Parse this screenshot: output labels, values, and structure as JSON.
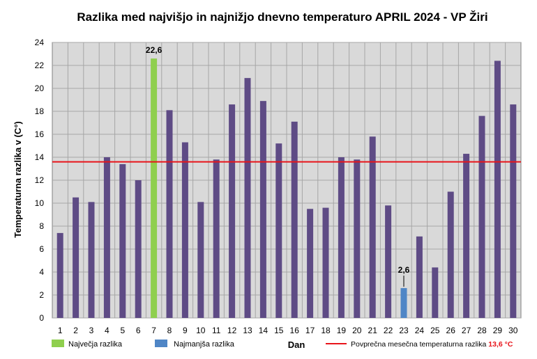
{
  "chart_data": {
    "type": "bar",
    "title": "Razlika med najvišjo in najnižjo dnevno temperaturo APRIL 2024 - VP Žiri",
    "xlabel": "Dan",
    "ylabel": "Temperaturna razlika v (C°)",
    "ylim": [
      0,
      24
    ],
    "yticks": [
      0,
      2,
      4,
      6,
      8,
      10,
      12,
      14,
      16,
      18,
      20,
      22,
      24
    ],
    "grid": true,
    "categories": [
      "1",
      "2",
      "3",
      "4",
      "5",
      "6",
      "7",
      "8",
      "9",
      "10",
      "11",
      "12",
      "13",
      "14",
      "15",
      "16",
      "17",
      "18",
      "19",
      "20",
      "21",
      "22",
      "23",
      "24",
      "25",
      "26",
      "27",
      "28",
      "29",
      "30"
    ],
    "values": [
      7.4,
      10.5,
      10.1,
      14.0,
      13.4,
      12.0,
      22.6,
      18.1,
      15.3,
      10.1,
      13.8,
      18.6,
      20.9,
      18.9,
      15.2,
      17.1,
      9.5,
      9.6,
      14.0,
      13.8,
      15.8,
      9.8,
      2.6,
      7.1,
      4.4,
      11.0,
      14.3,
      17.6,
      22.4,
      18.6
    ],
    "average": 13.6,
    "max_day": 7,
    "min_day": 23,
    "annotations": {
      "max_label": "22,6",
      "min_label": "2,6"
    },
    "colors": {
      "bar": "#5e4b85",
      "max": "#8fcf4e",
      "min": "#4f86c6",
      "average_line": "#e8141a",
      "plot_bg": "#d9d9d9",
      "grid": "#a6a6a6"
    },
    "legend": {
      "max_label": "Največja razlika",
      "min_label": "Najmanjša razlika",
      "avg_label": "Povprečna mesečna temperaturna razlika",
      "avg_value": "13,6 °C",
      "placement": "bottom"
    }
  }
}
